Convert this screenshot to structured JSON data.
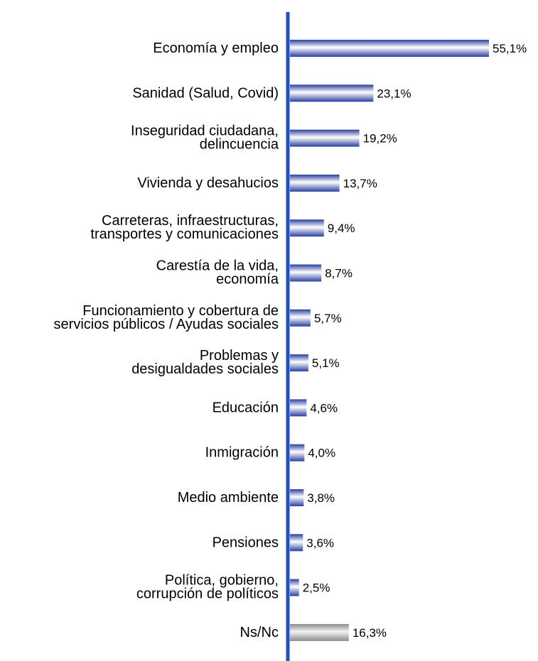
{
  "chart_data": {
    "type": "bar",
    "orientation": "horizontal",
    "title": "",
    "xlabel": "",
    "ylabel": "",
    "categories": [
      [
        "Economía y empleo"
      ],
      [
        "Sanidad (Salud, Covid)"
      ],
      [
        "Inseguridad ciudadana,",
        "delincuencia"
      ],
      [
        "Vivienda y desahucios"
      ],
      [
        "Carreteras, infraestructuras,",
        "transportes y comunicaciones"
      ],
      [
        "Carestía de la vida,",
        "economía"
      ],
      [
        "Funcionamiento y cobertura de",
        "servicios públicos / Ayudas sociales"
      ],
      [
        "Problemas y",
        "desigualdades sociales"
      ],
      [
        "Educación"
      ],
      [
        "Inmigración"
      ],
      [
        "Medio ambiente"
      ],
      [
        "Pensiones"
      ],
      [
        "Política, gobierno,",
        "corrupción de políticos"
      ],
      [
        "Ns/Nc"
      ]
    ],
    "values": [
      55.1,
      23.1,
      19.2,
      13.7,
      9.4,
      8.7,
      5.7,
      5.1,
      4.6,
      4.0,
      3.8,
      3.6,
      2.5,
      16.3
    ],
    "value_labels": [
      "55,1%",
      "23,1%",
      "19,2%",
      "13,7%",
      "9,4%",
      "8,7%",
      "5,7%",
      "5,1%",
      "4,6%",
      "4,0%",
      "3,8%",
      "3,6%",
      "2,5%",
      "16,3%"
    ],
    "bar_style": [
      "blue",
      "blue",
      "blue",
      "blue",
      "blue",
      "blue",
      "blue",
      "blue",
      "blue",
      "blue",
      "blue",
      "blue",
      "blue",
      "gray"
    ],
    "xlim": [
      0,
      55.1
    ],
    "grid": false,
    "legend": "none",
    "colors": {
      "axis": "#1f4fbf",
      "bar_blue_dark": "#2a3f9e",
      "bar_blue_light": "#ffffff",
      "bar_gray_dark": "#8a8a8a",
      "bar_gray_light": "#f2f2f2",
      "text": "#000000"
    }
  }
}
